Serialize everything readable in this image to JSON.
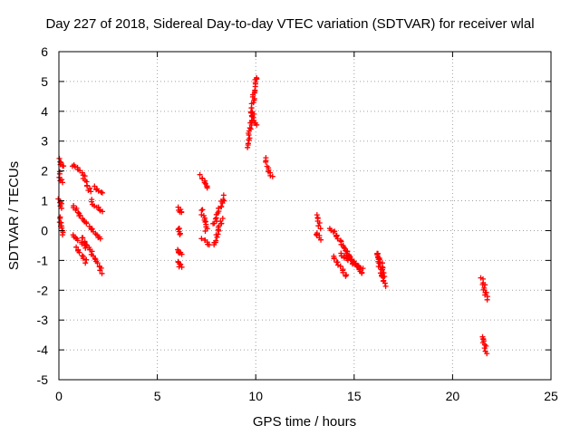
{
  "chart_data": {
    "type": "scatter",
    "title": "Day 227 of 2018, Sidereal Day-to-day VTEC variation (SDTVAR) for receiver wlal",
    "xlabel": "GPS time / hours",
    "ylabel": "SDTVAR / TECUs",
    "xlim": [
      0,
      25
    ],
    "ylim": [
      -5,
      6
    ],
    "x_ticks": [
      "0",
      "5",
      "10",
      "15",
      "20",
      "25"
    ],
    "y_ticks": [
      "-5",
      "-4",
      "-3",
      "-2",
      "-1",
      "0",
      "1",
      "2",
      "3",
      "4",
      "5",
      "6"
    ],
    "grid": true,
    "marker": "+",
    "color": "#ff0000",
    "segments": [
      {
        "x": [
          0.0,
          0.2
        ],
        "y": [
          2.4,
          2.15
        ]
      },
      {
        "x": [
          0.0,
          0.15
        ],
        "y": [
          1.95,
          1.6
        ]
      },
      {
        "x": [
          0.0,
          0.15
        ],
        "y": [
          1.05,
          0.75
        ]
      },
      {
        "x": [
          0.0,
          0.2
        ],
        "y": [
          0.45,
          -0.15
        ]
      },
      {
        "x": [
          0.7,
          1.3
        ],
        "y": [
          2.2,
          1.85
        ]
      },
      {
        "x": [
          1.3,
          1.6
        ],
        "y": [
          1.75,
          1.3
        ]
      },
      {
        "x": [
          0.7,
          2.1
        ],
        "y": [
          0.85,
          -0.3
        ]
      },
      {
        "x": [
          0.7,
          1.4
        ],
        "y": [
          -0.15,
          -0.55
        ]
      },
      {
        "x": [
          0.9,
          1.4
        ],
        "y": [
          -0.6,
          -1.05
        ]
      },
      {
        "x": [
          1.2,
          2.2
        ],
        "y": [
          -0.2,
          -1.4
        ]
      },
      {
        "x": [
          1.6,
          2.2
        ],
        "y": [
          1.0,
          0.65
        ]
      },
      {
        "x": [
          1.8,
          2.2
        ],
        "y": [
          1.45,
          1.3
        ]
      },
      {
        "x": [
          6.1,
          6.2
        ],
        "y": [
          0.75,
          0.6
        ]
      },
      {
        "x": [
          6.05,
          6.2
        ],
        "y": [
          0.1,
          -0.15
        ]
      },
      {
        "x": [
          6.05,
          6.2
        ],
        "y": [
          -0.65,
          -0.8
        ]
      },
      {
        "x": [
          6.05,
          6.2
        ],
        "y": [
          -1.05,
          -1.2
        ]
      },
      {
        "x": [
          7.2,
          7.6
        ],
        "y": [
          1.85,
          1.4
        ]
      },
      {
        "x": [
          7.25,
          7.5
        ],
        "y": [
          0.7,
          0.0
        ]
      },
      {
        "x": [
          7.3,
          7.6
        ],
        "y": [
          -0.3,
          -0.45
        ]
      },
      {
        "x": [
          7.9,
          8.3
        ],
        "y": [
          -0.5,
          0.4
        ]
      },
      {
        "x": [
          7.9,
          8.4
        ],
        "y": [
          0.2,
          1.15
        ]
      },
      {
        "x": [
          9.6,
          10.0
        ],
        "y": [
          2.8,
          5.15
        ]
      },
      {
        "x": [
          9.8,
          10.0
        ],
        "y": [
          4.0,
          3.5
        ]
      },
      {
        "x": [
          10.5,
          10.8
        ],
        "y": [
          2.4,
          1.8
        ]
      },
      {
        "x": [
          13.1,
          13.25
        ],
        "y": [
          0.5,
          0.1
        ]
      },
      {
        "x": [
          13.1,
          13.25
        ],
        "y": [
          -0.05,
          -0.3
        ]
      },
      {
        "x": [
          13.8,
          15.4
        ],
        "y": [
          0.1,
          -1.45
        ]
      },
      {
        "x": [
          13.9,
          14.6
        ],
        "y": [
          -0.85,
          -1.5
        ]
      },
      {
        "x": [
          14.3,
          15.4
        ],
        "y": [
          -0.8,
          -1.3
        ]
      },
      {
        "x": [
          14.5,
          15.3
        ],
        "y": [
          -0.7,
          -1.35
        ]
      },
      {
        "x": [
          16.1,
          16.6
        ],
        "y": [
          -0.75,
          -1.85
        ]
      },
      {
        "x": [
          16.2,
          16.6
        ],
        "y": [
          -0.8,
          -1.5
        ]
      },
      {
        "x": [
          21.5,
          21.75
        ],
        "y": [
          -1.6,
          -2.3
        ]
      },
      {
        "x": [
          21.5,
          21.75
        ],
        "y": [
          -3.55,
          -4.1
        ]
      }
    ]
  }
}
